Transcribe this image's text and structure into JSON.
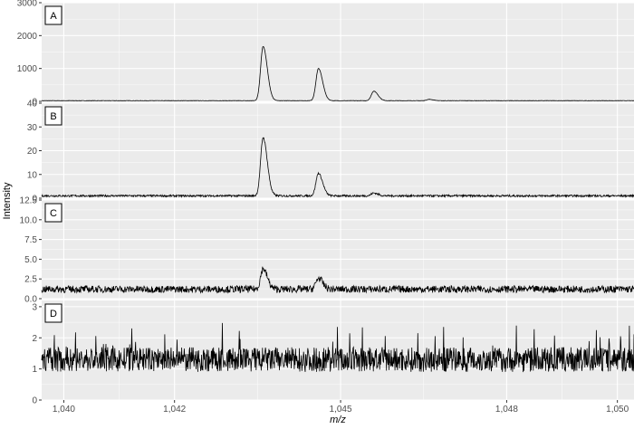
{
  "chart_data": {
    "type": "line",
    "layout": "4 vertically stacked panels sharing the x axis",
    "xlabel": "m/z",
    "ylabel": "Intensity",
    "xlim": [
      1039.6,
      1050.3
    ],
    "x_ticks": [
      1040,
      1042,
      1045,
      1048,
      1050
    ],
    "x_tick_labels": [
      "1,040",
      "1,042",
      "1,045",
      "1,048",
      "1,050"
    ],
    "colors": {
      "panel_bg": "#ebebeb",
      "grid": "#ffffff",
      "line": "#000000"
    },
    "grid": true,
    "panels": [
      {
        "label": "A",
        "ylim": [
          0,
          3000
        ],
        "y_ticks": [
          0,
          1000,
          2000,
          3000
        ],
        "y_tick_labels": [
          "0",
          "1000",
          "2000",
          "3000"
        ],
        "baseline": 20,
        "noise": 5,
        "peaks": [
          {
            "x": 1043.6,
            "height": 1650
          },
          {
            "x": 1044.6,
            "height": 980
          },
          {
            "x": 1045.6,
            "height": 290
          },
          {
            "x": 1046.6,
            "height": 40
          }
        ]
      },
      {
        "label": "B",
        "ylim": [
          0,
          40
        ],
        "y_ticks": [
          0,
          10,
          20,
          30,
          40
        ],
        "y_tick_labels": [
          "0",
          "10",
          "20",
          "30",
          "40"
        ],
        "baseline": 1,
        "noise": 0.4,
        "peaks": [
          {
            "x": 1043.6,
            "height": 24.5
          },
          {
            "x": 1044.6,
            "height": 9.5
          },
          {
            "x": 1045.6,
            "height": 1.2
          }
        ]
      },
      {
        "label": "C",
        "ylim": [
          0,
          12.5
        ],
        "y_ticks": [
          0,
          2.5,
          5,
          7.5,
          10,
          12.5
        ],
        "y_tick_labels": [
          "0.0",
          "2.5",
          "5.0",
          "7.5",
          "10.0",
          "12.5"
        ],
        "baseline": 1.2,
        "noise": 0.45,
        "peaks": [
          {
            "x": 1043.6,
            "height": 2.6
          },
          {
            "x": 1044.6,
            "height": 1.4
          }
        ]
      },
      {
        "label": "D",
        "ylim": [
          0,
          3.2
        ],
        "y_ticks": [
          0,
          1,
          2,
          3
        ],
        "y_tick_labels": [
          "0",
          "1",
          "2",
          "3"
        ],
        "baseline": 1.3,
        "noise": 0.4,
        "peaks": []
      }
    ]
  }
}
